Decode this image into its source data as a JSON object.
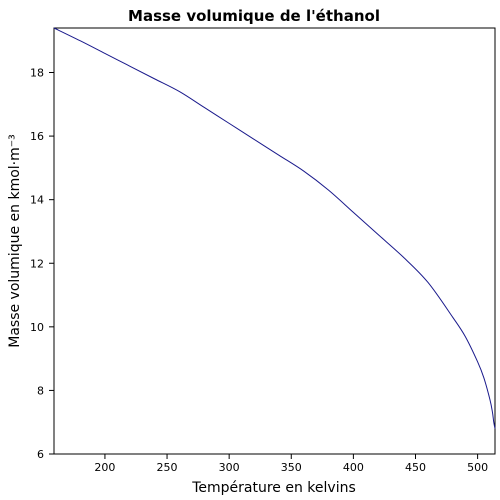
{
  "chart_data": {
    "type": "line",
    "title": "Masse volumique de l'éthanol",
    "xlabel": "Température en kelvins",
    "ylabel": "Masse volumique en kmol·m⁻³",
    "xlim": [
      159,
      514
    ],
    "ylim": [
      6,
      19.4
    ],
    "xticks": [
      200,
      250,
      300,
      350,
      400,
      450,
      500
    ],
    "yticks": [
      6,
      8,
      10,
      12,
      14,
      16,
      18
    ],
    "grid": false,
    "series": [
      {
        "color": "#1a1a8c",
        "x": [
          159,
          180,
          200,
          220,
          240,
          260,
          280,
          300,
          320,
          340,
          360,
          380,
          400,
          420,
          440,
          460,
          480,
          490,
          500,
          505,
          510,
          512,
          513,
          514
        ],
        "y": [
          19.4,
          19.0,
          18.6,
          18.2,
          17.8,
          17.4,
          16.9,
          16.4,
          15.9,
          15.4,
          14.9,
          14.3,
          13.6,
          12.9,
          12.2,
          11.4,
          10.3,
          9.7,
          8.9,
          8.4,
          7.7,
          7.3,
          7.0,
          6.8
        ]
      }
    ]
  }
}
